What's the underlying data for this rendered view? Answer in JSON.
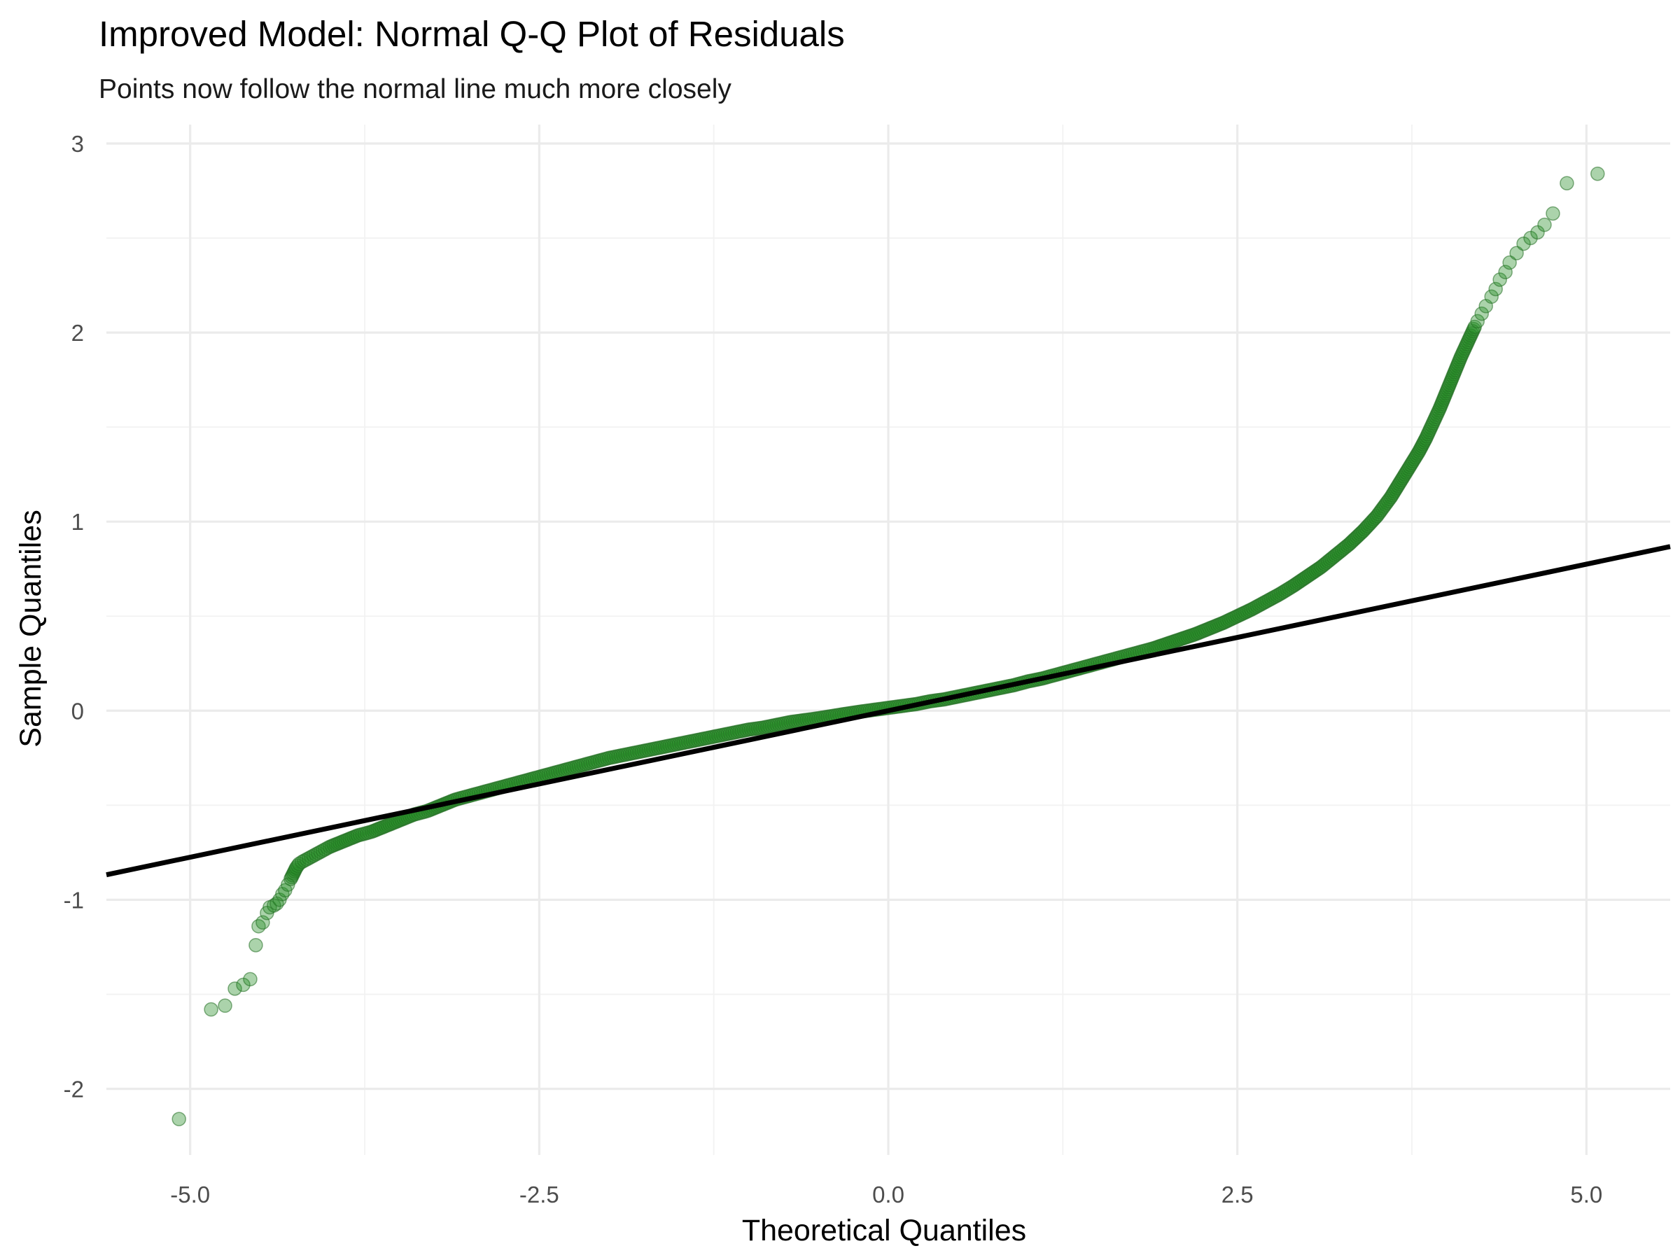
{
  "chart_data": {
    "type": "scatter",
    "title": "Improved Model: Normal Q-Q Plot of Residuals",
    "subtitle": "Points now follow the normal line much more closely",
    "xlabel": "Theoretical Quantiles",
    "ylabel": "Sample Quantiles",
    "xlim": [
      -5.6,
      5.6
    ],
    "ylim": [
      -2.35,
      3.1
    ],
    "x_ticks": [
      -5.0,
      -2.5,
      0.0,
      2.5,
      5.0
    ],
    "x_tick_labels": [
      "-5.0",
      "-2.5",
      "0.0",
      "2.5",
      "5.0"
    ],
    "y_ticks": [
      -2,
      -1,
      0,
      1,
      2,
      3
    ],
    "y_tick_labels": [
      "-2",
      "-1",
      "0",
      "1",
      "2",
      "3"
    ],
    "grid": true,
    "reference_line": {
      "slope": 0.155,
      "intercept": 0.0,
      "color": "#000000"
    },
    "point_color": "#228B22",
    "series": [
      {
        "x": [
          -5.08,
          -4.85,
          -4.75,
          -4.68,
          -4.62,
          -4.57,
          -4.53,
          -4.51,
          -4.48,
          -4.45,
          -4.43,
          -4.4,
          -4.38,
          -4.36,
          -4.34,
          -4.32,
          -4.3,
          -4.28,
          -4.26,
          -4.24,
          -4.22,
          -4.2,
          -4.15,
          -4.1,
          -4.05,
          -4.0,
          -3.9,
          -3.8,
          -3.7,
          -3.6,
          -3.5,
          -3.4,
          -3.3,
          -3.2,
          -3.1,
          -3.0,
          -2.9,
          -2.8,
          -2.7,
          -2.6,
          -2.5,
          -2.4,
          -2.3,
          -2.2,
          -2.1,
          -2.0,
          -1.9,
          -1.8,
          -1.7,
          -1.6,
          -1.5,
          -1.4,
          -1.3,
          -1.2,
          -1.1,
          -1.0,
          -0.9,
          -0.8,
          -0.7,
          -0.6,
          -0.5,
          -0.4,
          -0.3,
          -0.2,
          -0.1,
          0.0,
          0.1,
          0.2,
          0.3,
          0.4,
          0.5,
          0.6,
          0.7,
          0.8,
          0.9,
          1.0,
          1.1,
          1.2,
          1.3,
          1.4,
          1.5,
          1.6,
          1.7,
          1.8,
          1.9,
          2.0,
          2.1,
          2.2,
          2.3,
          2.4,
          2.5,
          2.6,
          2.7,
          2.8,
          2.9,
          3.0,
          3.1,
          3.2,
          3.3,
          3.4,
          3.5,
          3.55,
          3.6,
          3.65,
          3.7,
          3.75,
          3.8,
          3.85,
          3.9,
          3.95,
          4.0,
          4.05,
          4.1,
          4.15,
          4.2,
          4.22,
          4.25,
          4.28,
          4.32,
          4.35,
          4.38,
          4.42,
          4.45,
          4.5,
          4.55,
          4.6,
          4.65,
          4.7,
          4.76,
          4.86,
          5.08
        ],
        "y": [
          -2.16,
          -1.58,
          -1.56,
          -1.47,
          -1.45,
          -1.42,
          -1.24,
          -1.14,
          -1.12,
          -1.07,
          -1.04,
          -1.03,
          -1.02,
          -1.0,
          -0.97,
          -0.95,
          -0.92,
          -0.89,
          -0.86,
          -0.83,
          -0.81,
          -0.8,
          -0.78,
          -0.76,
          -0.74,
          -0.72,
          -0.69,
          -0.66,
          -0.64,
          -0.61,
          -0.58,
          -0.55,
          -0.53,
          -0.5,
          -0.47,
          -0.45,
          -0.43,
          -0.41,
          -0.39,
          -0.37,
          -0.35,
          -0.33,
          -0.31,
          -0.29,
          -0.27,
          -0.25,
          -0.235,
          -0.22,
          -0.205,
          -0.19,
          -0.175,
          -0.16,
          -0.145,
          -0.13,
          -0.115,
          -0.1,
          -0.09,
          -0.075,
          -0.06,
          -0.05,
          -0.04,
          -0.028,
          -0.016,
          -0.005,
          0.005,
          0.015,
          0.025,
          0.035,
          0.05,
          0.06,
          0.075,
          0.09,
          0.105,
          0.12,
          0.135,
          0.155,
          0.17,
          0.19,
          0.21,
          0.23,
          0.25,
          0.27,
          0.29,
          0.31,
          0.33,
          0.355,
          0.38,
          0.405,
          0.435,
          0.465,
          0.5,
          0.535,
          0.575,
          0.615,
          0.66,
          0.71,
          0.76,
          0.82,
          0.88,
          0.95,
          1.03,
          1.08,
          1.13,
          1.19,
          1.25,
          1.31,
          1.37,
          1.44,
          1.52,
          1.6,
          1.69,
          1.78,
          1.87,
          1.95,
          2.03,
          2.06,
          2.1,
          2.14,
          2.19,
          2.23,
          2.28,
          2.32,
          2.37,
          2.42,
          2.47,
          2.5,
          2.53,
          2.57,
          2.63,
          2.79,
          2.84
        ]
      }
    ]
  }
}
